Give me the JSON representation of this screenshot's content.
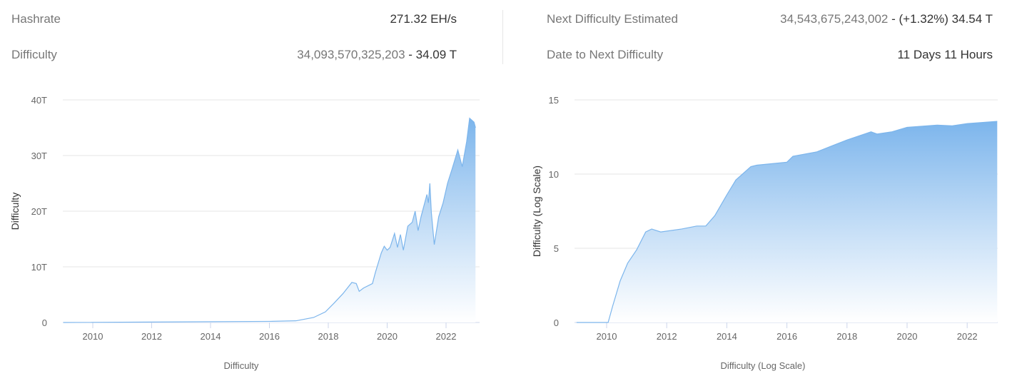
{
  "stats": {
    "hashrate_label": "Hashrate",
    "hashrate_value": "271.32 EH/s",
    "difficulty_label": "Difficulty",
    "difficulty_raw": "34,093,570,325,203",
    "difficulty_short": " - 34.09 T",
    "next_label": "Next Difficulty Estimated",
    "next_raw": "34,543,675,243,002",
    "next_short": " - (+1.32%) 34.54 T",
    "date_label": "Date to Next Difficulty",
    "date_value": "11 Days 11 Hours"
  },
  "colors": {
    "fill_top": "#7cb5ec",
    "fill_bottom": "#ffffff",
    "line": "#7cb5ec",
    "grid": "#e6e6e6"
  },
  "chart_data": [
    {
      "type": "area",
      "ylabel": "Difficulty",
      "xlabel": "Difficulty",
      "xlim": [
        2009,
        2023.1
      ],
      "ylim": [
        0,
        40
      ],
      "grid": true,
      "yticks": [
        {
          "v": 0,
          "label": "0"
        },
        {
          "v": 10,
          "label": "10T"
        },
        {
          "v": 20,
          "label": "20T"
        },
        {
          "v": 30,
          "label": "30T"
        },
        {
          "v": 40,
          "label": "40T"
        }
      ],
      "xticks": [
        2010,
        2012,
        2014,
        2016,
        2018,
        2020,
        2022
      ],
      "points": [
        [
          2009,
          0
        ],
        [
          2016,
          0.2
        ],
        [
          2016.9,
          0.3
        ],
        [
          2017.5,
          0.9
        ],
        [
          2017.9,
          1.9
        ],
        [
          2018.2,
          3.5
        ],
        [
          2018.5,
          5.2
        ],
        [
          2018.8,
          7.2
        ],
        [
          2018.95,
          7.0
        ],
        [
          2019.05,
          5.6
        ],
        [
          2019.2,
          6.2
        ],
        [
          2019.5,
          7.0
        ],
        [
          2019.6,
          9.0
        ],
        [
          2019.8,
          12.5
        ],
        [
          2019.9,
          13.7
        ],
        [
          2020.0,
          13.0
        ],
        [
          2020.1,
          13.5
        ],
        [
          2020.25,
          16.0
        ],
        [
          2020.35,
          13.5
        ],
        [
          2020.45,
          15.8
        ],
        [
          2020.55,
          13.0
        ],
        [
          2020.7,
          17.3
        ],
        [
          2020.85,
          18.0
        ],
        [
          2020.95,
          20.0
        ],
        [
          2021.05,
          16.5
        ],
        [
          2021.15,
          19.0
        ],
        [
          2021.25,
          21.0
        ],
        [
          2021.35,
          23.0
        ],
        [
          2021.4,
          21.5
        ],
        [
          2021.45,
          25.0
        ],
        [
          2021.5,
          19.8
        ],
        [
          2021.6,
          14.0
        ],
        [
          2021.75,
          19.0
        ],
        [
          2021.9,
          21.5
        ],
        [
          2022.05,
          25.0
        ],
        [
          2022.2,
          27.5
        ],
        [
          2022.4,
          31.0
        ],
        [
          2022.55,
          28.0
        ],
        [
          2022.7,
          32.5
        ],
        [
          2022.8,
          36.7
        ],
        [
          2022.95,
          36.0
        ],
        [
          2023.0,
          35.0
        ]
      ]
    },
    {
      "type": "area",
      "ylabel": "Difficulty (Log Scale)",
      "xlabel": "Difficulty (Log Scale)",
      "xlim": [
        2009,
        2023.1
      ],
      "ylim": [
        0,
        15
      ],
      "grid": true,
      "yticks": [
        {
          "v": 0,
          "label": "0"
        },
        {
          "v": 5,
          "label": "5"
        },
        {
          "v": 10,
          "label": "10"
        },
        {
          "v": 15,
          "label": "15"
        }
      ],
      "xticks": [
        2010,
        2012,
        2014,
        2016,
        2018,
        2020,
        2022
      ],
      "points": [
        [
          2009,
          0
        ],
        [
          2010.05,
          0
        ],
        [
          2010.2,
          1.1
        ],
        [
          2010.45,
          2.8
        ],
        [
          2010.7,
          4.0
        ],
        [
          2011.0,
          4.9
        ],
        [
          2011.3,
          6.1
        ],
        [
          2011.5,
          6.3
        ],
        [
          2011.8,
          6.1
        ],
        [
          2012.5,
          6.3
        ],
        [
          2013.0,
          6.5
        ],
        [
          2013.3,
          6.5
        ],
        [
          2013.6,
          7.2
        ],
        [
          2014.0,
          8.6
        ],
        [
          2014.3,
          9.6
        ],
        [
          2014.8,
          10.5
        ],
        [
          2015.0,
          10.6
        ],
        [
          2016.0,
          10.8
        ],
        [
          2016.2,
          11.2
        ],
        [
          2017.0,
          11.5
        ],
        [
          2017.5,
          11.9
        ],
        [
          2018.0,
          12.3
        ],
        [
          2018.8,
          12.85
        ],
        [
          2019.0,
          12.7
        ],
        [
          2019.5,
          12.85
        ],
        [
          2020.0,
          13.15
        ],
        [
          2021.0,
          13.3
        ],
        [
          2021.5,
          13.25
        ],
        [
          2022.0,
          13.4
        ],
        [
          2023.0,
          13.55
        ]
      ]
    }
  ]
}
